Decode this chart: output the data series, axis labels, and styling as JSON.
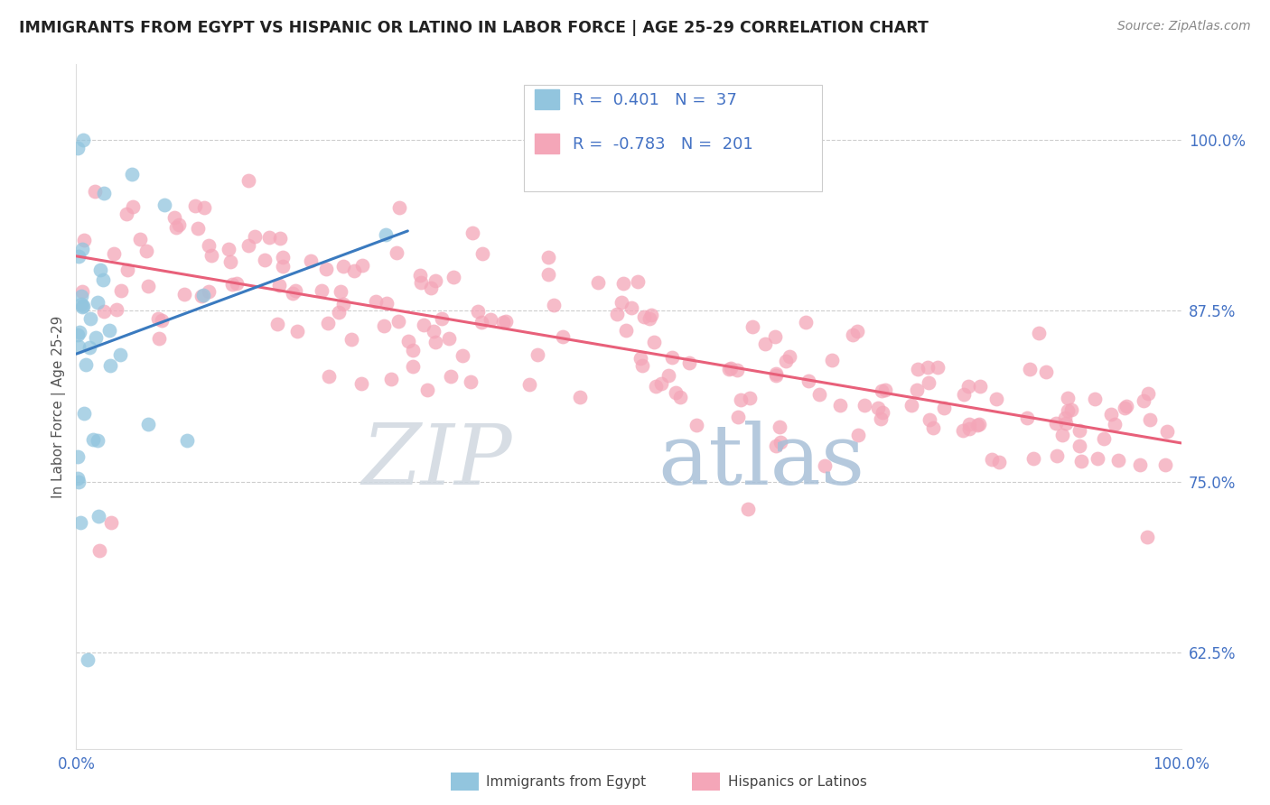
{
  "title": "IMMIGRANTS FROM EGYPT VS HISPANIC OR LATINO IN LABOR FORCE | AGE 25-29 CORRELATION CHART",
  "source": "Source: ZipAtlas.com",
  "ylabel": "In Labor Force | Age 25-29",
  "blue_label": "Immigrants from Egypt",
  "pink_label": "Hispanics or Latinos",
  "blue_R": 0.401,
  "blue_N": 37,
  "pink_R": -0.783,
  "pink_N": 201,
  "xlim": [
    0.0,
    1.0
  ],
  "ylim": [
    0.555,
    1.055
  ],
  "yticks": [
    0.625,
    0.75,
    0.875,
    1.0
  ],
  "ytick_labels": [
    "62.5%",
    "75.0%",
    "87.5%",
    "100.0%"
  ],
  "xticks": [
    0.0,
    0.1,
    0.2,
    0.3,
    0.4,
    0.5,
    0.6,
    0.7,
    0.8,
    0.9,
    1.0
  ],
  "xtick_labels": [
    "0.0%",
    "",
    "",
    "",
    "",
    "",
    "",
    "",
    "",
    "",
    "100.0%"
  ],
  "blue_color": "#92c5de",
  "pink_color": "#f4a6b8",
  "blue_line_color": "#3a7abf",
  "pink_line_color": "#e8607a",
  "background_color": "#ffffff",
  "grid_color": "#c8c8c8",
  "title_color": "#222222",
  "axis_label_color": "#4472c4",
  "legend_text_color": "#222222",
  "source_color": "#888888",
  "watermark_zip_color": "#d8e8f4",
  "watermark_atlas_color": "#b8cce4"
}
